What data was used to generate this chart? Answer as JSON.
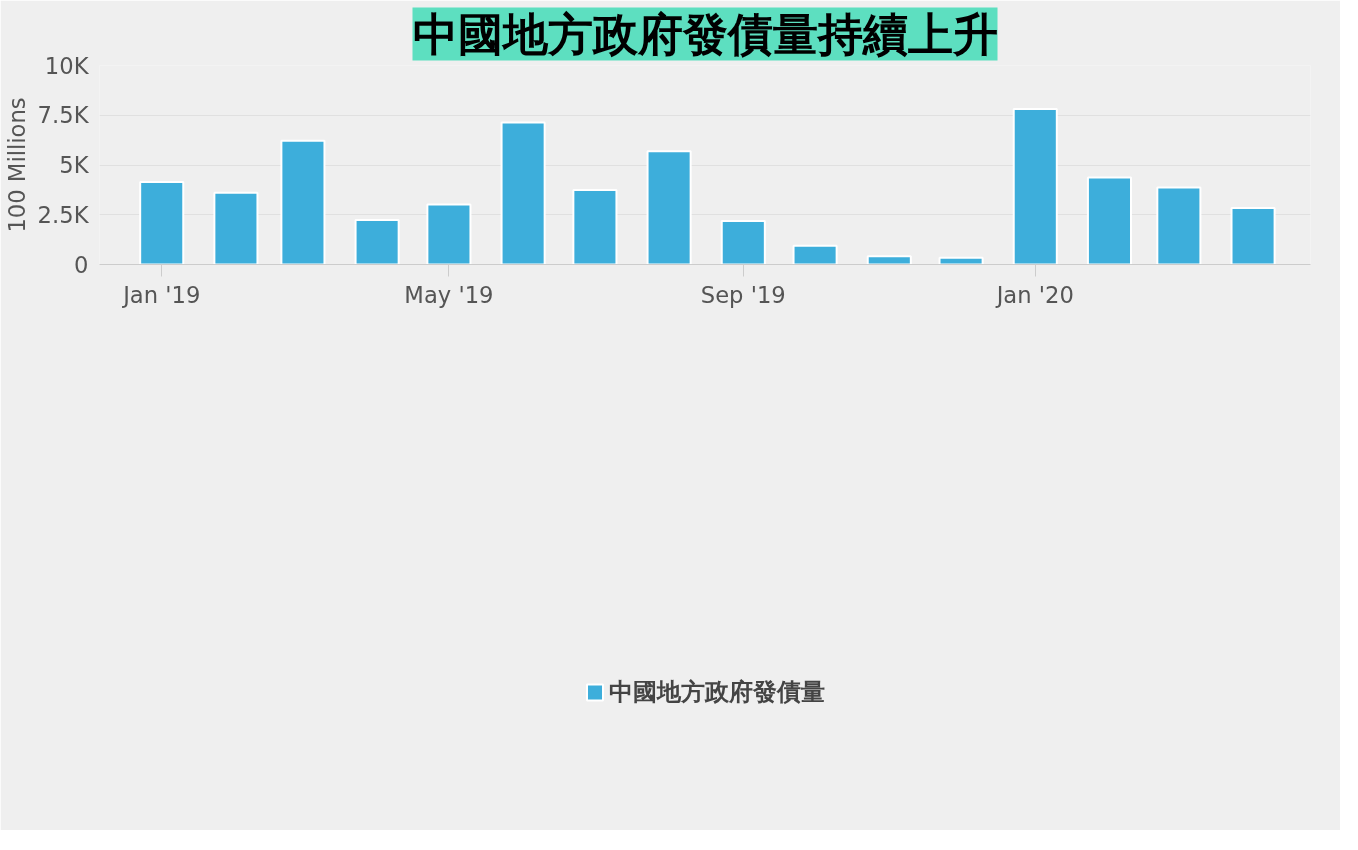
{
  "chart_data": {
    "type": "bar",
    "title": "中國地方政府發債量持續上升",
    "ylabel": "100 Millions",
    "x": [
      "2019-01",
      "2019-02",
      "2019-03",
      "2019-04",
      "2019-05",
      "2019-06",
      "2019-07",
      "2019-08",
      "2019-09",
      "2019-10",
      "2019-11",
      "2019-12",
      "2020-01",
      "2020-02",
      "2020-03",
      "2020-04"
    ],
    "series": [
      {
        "name": "中國地方政府發債量",
        "color": "#3daedb",
        "values": [
          4140,
          3610,
          6220,
          2230,
          3020,
          7140,
          3740,
          5690,
          2190,
          940,
          420,
          340,
          7820,
          4370,
          3870,
          2840
        ]
      }
    ],
    "xlim": [
      "2018-12-06",
      "2020-04-25"
    ],
    "xticks": [
      {
        "value": "2019-01",
        "label": "Jan '19"
      },
      {
        "value": "2019-05",
        "label": "May '19"
      },
      {
        "value": "2019-09",
        "label": "Sep '19"
      },
      {
        "value": "2020-01",
        "label": "Jan '20"
      }
    ],
    "ylim": [
      0,
      10000
    ],
    "yticks": [
      {
        "value": 0,
        "label": "0"
      },
      {
        "value": 2500,
        "label": "2.5K"
      },
      {
        "value": 5000,
        "label": "5K"
      },
      {
        "value": 7500,
        "label": "7.5K"
      },
      {
        "value": 10000,
        "label": "10K"
      }
    ],
    "grid": "y",
    "legend": "bottom"
  }
}
